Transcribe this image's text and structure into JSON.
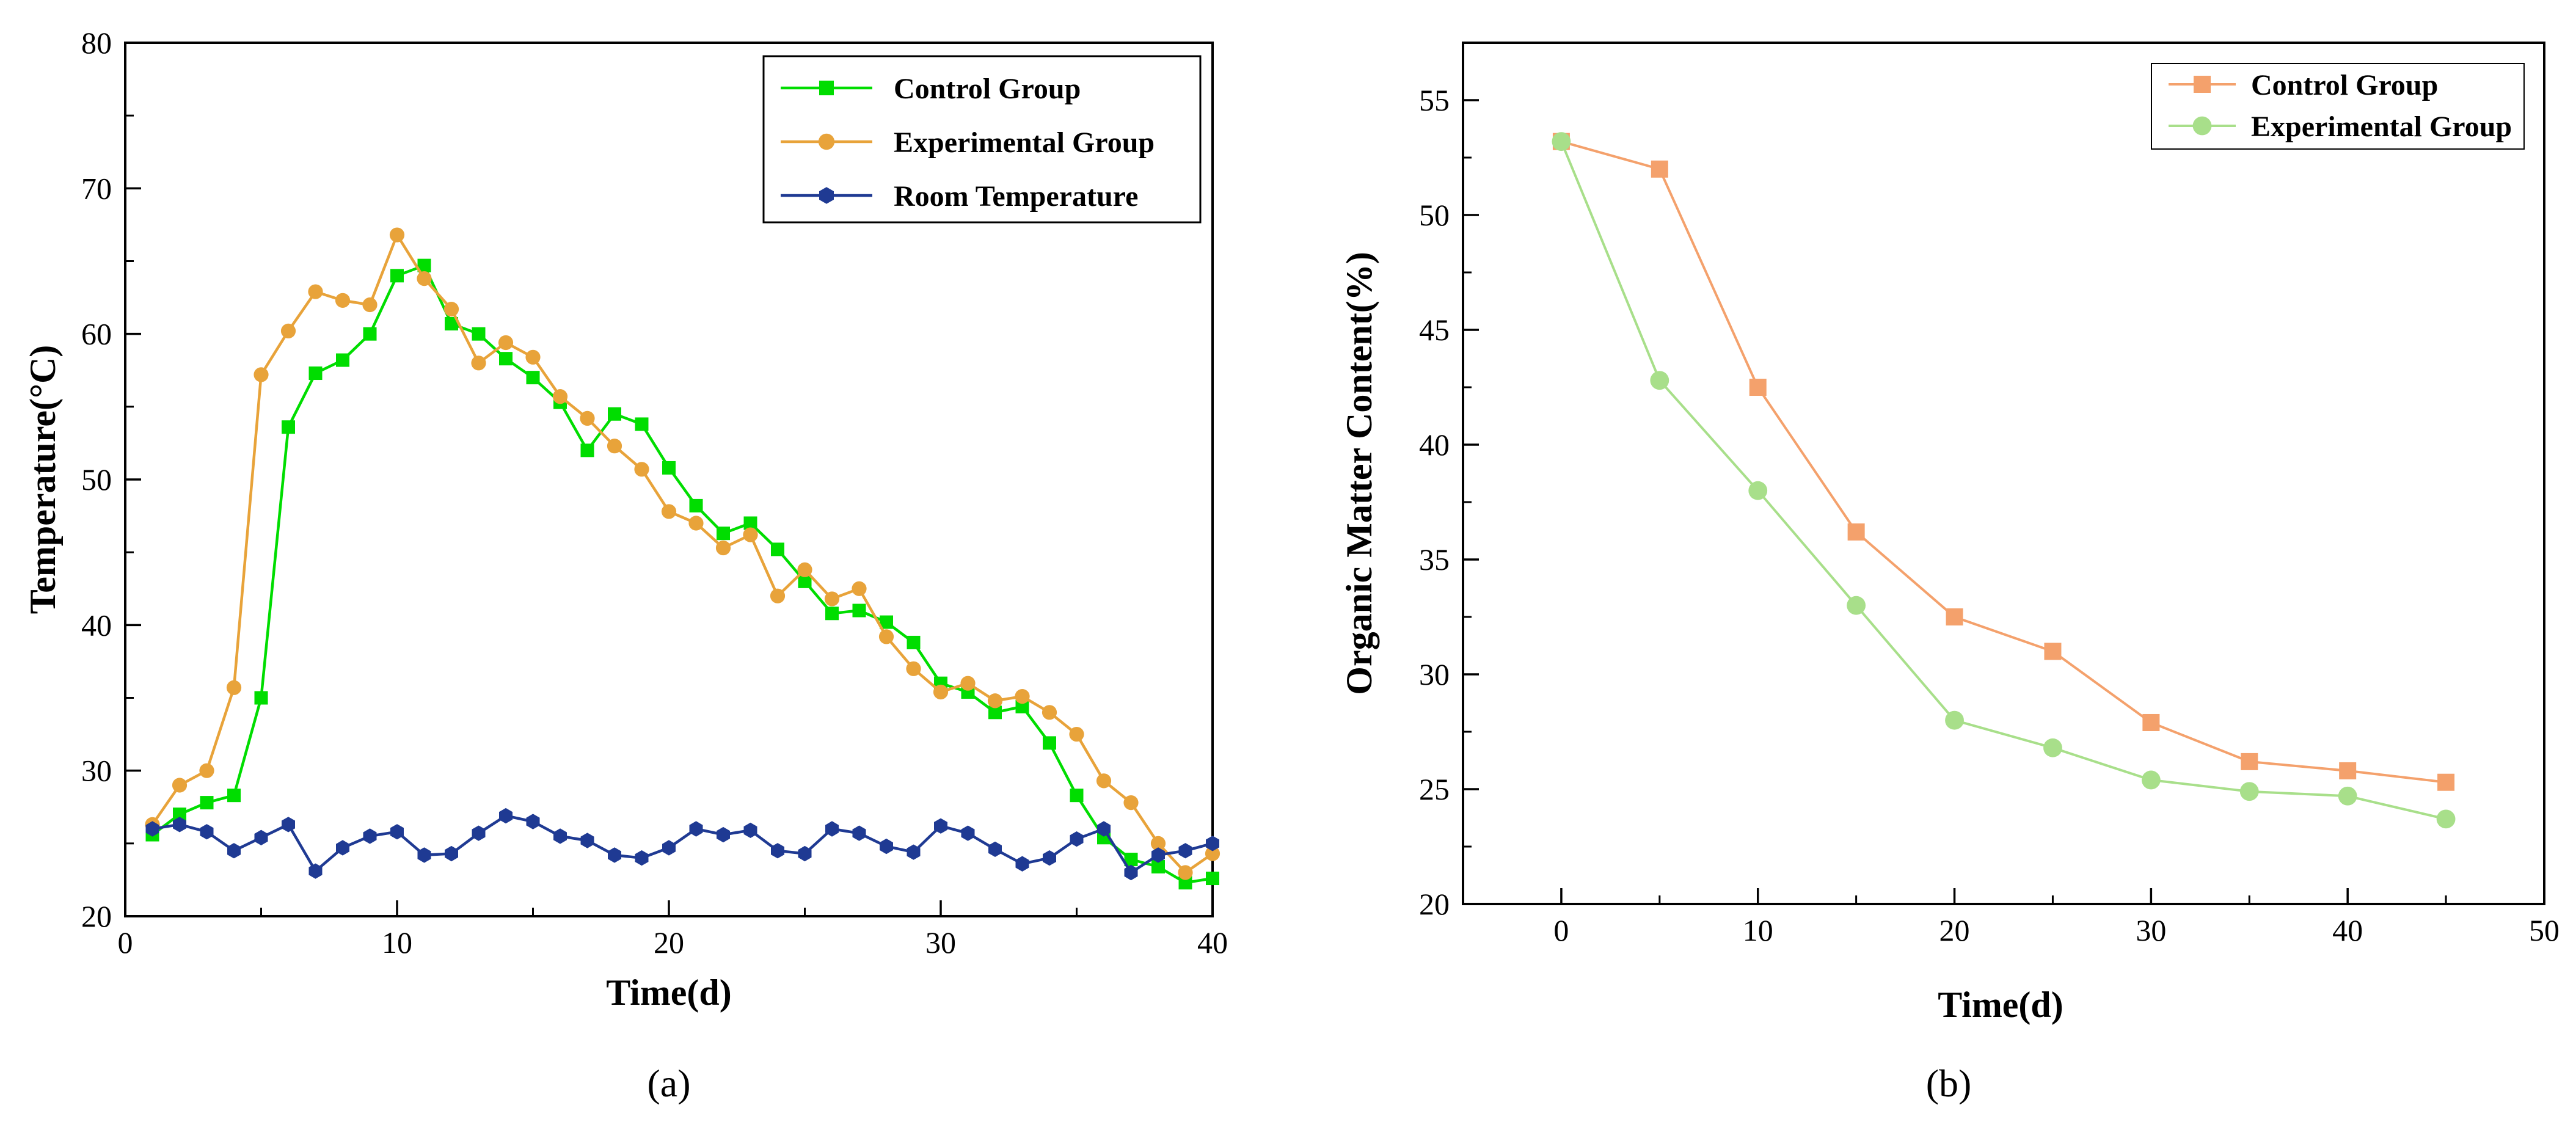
{
  "chart_data": [
    {
      "type": "line",
      "caption": "(a)",
      "xlabel": "Time(d)",
      "ylabel": "Temperature(°C)",
      "xlim": [
        0,
        40
      ],
      "ylim": [
        20,
        80
      ],
      "xticks": [
        0,
        10,
        20,
        30,
        40
      ],
      "yticks": [
        20,
        30,
        40,
        50,
        60,
        70,
        80
      ],
      "legend_position": "top-right",
      "x": [
        1,
        2,
        3,
        4,
        5,
        6,
        7,
        8,
        9,
        10,
        11,
        12,
        13,
        14,
        15,
        16,
        17,
        18,
        19,
        20,
        21,
        22,
        23,
        24,
        25,
        26,
        27,
        28,
        29,
        30,
        31,
        32,
        33,
        34,
        35,
        36,
        37,
        38,
        39,
        40
      ],
      "series": [
        {
          "name": "Control Group",
          "color": "#00dd00",
          "marker": "square",
          "values": [
            25.6,
            27.0,
            27.8,
            28.3,
            35.0,
            53.6,
            57.3,
            58.2,
            60.0,
            64.0,
            64.7,
            60.7,
            60.0,
            58.3,
            57.0,
            55.3,
            52.0,
            54.5,
            53.8,
            50.8,
            48.2,
            46.3,
            47.0,
            45.2,
            43.0,
            40.8,
            41.0,
            40.2,
            38.8,
            36.0,
            35.4,
            34.0,
            34.4,
            31.9,
            28.3,
            25.4,
            23.9,
            23.4,
            22.3,
            22.6
          ]
        },
        {
          "name": "Experimental Group",
          "color": "#e8a33a",
          "marker": "circle",
          "values": [
            26.3,
            29.0,
            30.0,
            35.7,
            57.2,
            60.2,
            62.9,
            62.3,
            62.0,
            66.8,
            63.8,
            61.7,
            58.0,
            59.4,
            58.4,
            55.7,
            54.2,
            52.3,
            50.7,
            47.8,
            47.0,
            45.3,
            46.2,
            42.0,
            43.8,
            41.8,
            42.5,
            39.2,
            37.0,
            35.4,
            36.0,
            34.8,
            35.1,
            34.0,
            32.5,
            29.3,
            27.8,
            25.0,
            23.0,
            24.3
          ]
        },
        {
          "name": "Room Temperature",
          "color": "#1f3a93",
          "marker": "hexagon",
          "values": [
            26.0,
            26.3,
            25.8,
            24.5,
            25.4,
            26.3,
            23.1,
            24.7,
            25.5,
            25.8,
            24.2,
            24.3,
            25.7,
            26.9,
            26.5,
            25.5,
            25.2,
            24.2,
            24.0,
            24.7,
            26.0,
            25.6,
            25.9,
            24.5,
            24.3,
            26.0,
            25.7,
            24.8,
            24.4,
            26.2,
            25.7,
            24.6,
            23.6,
            24.0,
            25.3,
            26.0,
            23.0,
            24.2,
            24.5,
            25.0
          ]
        }
      ]
    },
    {
      "type": "line",
      "caption": "(b)",
      "xlabel": "Time(d)",
      "ylabel": "Organic Matter Content(%)",
      "xlim": [
        -5,
        50
      ],
      "ylim": [
        20,
        57.5
      ],
      "xticks": [
        0,
        10,
        20,
        30,
        40,
        50
      ],
      "yticks": [
        20,
        25,
        30,
        35,
        40,
        45,
        50,
        55
      ],
      "legend_position": "top-right",
      "x": [
        0,
        5,
        10,
        15,
        20,
        25,
        30,
        35,
        40,
        45
      ],
      "series": [
        {
          "name": "Control Group",
          "color": "#f4a16c",
          "marker": "square",
          "values": [
            53.2,
            52.0,
            42.5,
            36.2,
            32.5,
            31.0,
            27.9,
            26.2,
            25.8,
            25.3
          ]
        },
        {
          "name": "Experimental Group",
          "color": "#a8df8a",
          "marker": "circle",
          "values": [
            53.2,
            42.8,
            38.0,
            33.0,
            28.0,
            26.8,
            25.4,
            24.9,
            24.7,
            23.7
          ]
        }
      ]
    }
  ]
}
